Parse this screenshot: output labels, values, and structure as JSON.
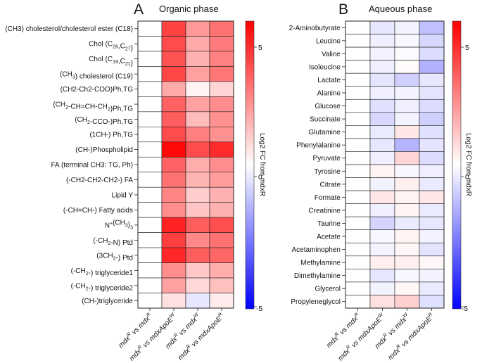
{
  "chart_data": [
    {
      "type": "heatmap",
      "panel_label": "A",
      "title": "Organic phase",
      "colorbar_label": "Log2 FC from mdxR",
      "colorbar_ticks": [
        "5",
        "0",
        "-5"
      ],
      "vlim": [
        -6.5,
        6.5
      ],
      "columns": [
        "mdxR vs mdxR",
        "mdxR vs mdxApoEW",
        "mdxR vs mdxW",
        "mdxR vs mdxApoER"
      ],
      "rows": [
        {
          "label": "(CH3) cholesterol/cholesterol ester (C18)",
          "values": [
            0,
            4.8,
            2.6,
            3.6
          ]
        },
        {
          "label": "Chol (C26,C27)",
          "values": [
            0,
            4.6,
            2.2,
            3.4
          ]
        },
        {
          "label": "Chol (C19,C21)",
          "values": [
            0,
            4.4,
            2.0,
            3.2
          ]
        },
        {
          "label": "(CH3) cholesterol (C19)",
          "values": [
            0,
            4.7,
            2.4,
            3.5
          ]
        },
        {
          "label": "(CH2-Ch2-COO)Ph,TG",
          "values": [
            0,
            2.2,
            0.3,
            1.1
          ]
        },
        {
          "label": "(CH2-CH=CH-CH2)Ph,TG",
          "values": [
            0,
            4.0,
            2.4,
            2.9
          ]
        },
        {
          "label": "(CH2-CCO-)Ph,TG",
          "values": [
            0,
            4.1,
            1.7,
            2.8
          ]
        },
        {
          "label": "(1CH-) Ph,TG",
          "values": [
            0,
            4.6,
            3.3,
            2.8
          ]
        },
        {
          "label": "(CH-)Phospholipid",
          "values": [
            0,
            6.3,
            4.6,
            5.4
          ]
        },
        {
          "label": "FA (terminal CH3: TG, Ph)",
          "values": [
            0,
            4.0,
            2.1,
            2.9
          ]
        },
        {
          "label": "(-CH2-CH2-CH2-) FA",
          "values": [
            0,
            3.6,
            1.9,
            2.5
          ]
        },
        {
          "label": "Lipid Y",
          "values": [
            0,
            3.1,
            1.3,
            2.0
          ]
        },
        {
          "label": "(-CH=CH-) Fatty acids",
          "values": [
            0,
            2.9,
            1.5,
            2.0
          ]
        },
        {
          "label": "N+(CH3)3",
          "values": [
            0,
            5.6,
            4.1,
            4.5
          ]
        },
        {
          "label": "(-CH2-N) Ptd",
          "values": [
            0,
            4.9,
            3.0,
            3.6
          ]
        },
        {
          "label": "(3CH2-) Ptd",
          "values": [
            0,
            5.5,
            4.1,
            3.9
          ]
        },
        {
          "label": "(-CH2-) triglyceride1",
          "values": [
            0,
            2.9,
            1.4,
            2.1
          ]
        },
        {
          "label": "(-CH2-) triglyceride2",
          "values": [
            0,
            2.4,
            1.0,
            1.6
          ]
        },
        {
          "label": "(CH-)triglyceride",
          "values": [
            0,
            0.8,
            -0.6,
            0.5
          ]
        }
      ]
    },
    {
      "type": "heatmap",
      "panel_label": "B",
      "title": "Aqueous phase",
      "colorbar_label": "Log2 FC from mdxR",
      "colorbar_ticks": [
        "5",
        "0",
        "-5"
      ],
      "vlim": [
        -6.5,
        6.5
      ],
      "columns": [
        "mdxR vs mdxR",
        "mdxR vs mdxApoEW",
        "mdxR vs mdxW",
        "mdxR vs mdxApoER"
      ],
      "rows": [
        {
          "label": "2-Aminobutyrate",
          "values": [
            0,
            -0.6,
            -0.3,
            -1.6
          ]
        },
        {
          "label": "Leucine",
          "values": [
            0,
            -0.4,
            -0.2,
            -1.0
          ]
        },
        {
          "label": "Valine",
          "values": [
            0,
            -0.3,
            -0.1,
            -0.9
          ]
        },
        {
          "label": "Isoleucine",
          "values": [
            0,
            -0.4,
            0.1,
            -2.0
          ]
        },
        {
          "label": "Lactate",
          "values": [
            0,
            -0.7,
            -1.2,
            -0.6
          ]
        },
        {
          "label": "Alanine",
          "values": [
            0,
            -0.4,
            -0.3,
            -0.7
          ]
        },
        {
          "label": "Glucose",
          "values": [
            0,
            -0.8,
            -0.4,
            -0.9
          ]
        },
        {
          "label": "Succinate",
          "values": [
            0,
            -1.0,
            -0.3,
            -1.2
          ]
        },
        {
          "label": "Glutamine",
          "values": [
            0,
            -0.5,
            0.6,
            -0.8
          ]
        },
        {
          "label": "Phenylalanine",
          "values": [
            0,
            -0.6,
            -1.9,
            -0.7
          ]
        },
        {
          "label": "Pyruvate",
          "values": [
            0,
            -0.4,
            1.1,
            -0.9
          ]
        },
        {
          "label": "Tyrosine",
          "values": [
            0,
            0.3,
            -0.2,
            -0.4
          ]
        },
        {
          "label": "Citrate",
          "values": [
            0,
            -0.3,
            0.4,
            -0.5
          ]
        },
        {
          "label": "Formate",
          "values": [
            0,
            0.6,
            0.3,
            0.6
          ]
        },
        {
          "label": "Creatinine",
          "values": [
            0,
            -0.4,
            0.3,
            -0.5
          ]
        },
        {
          "label": "Taurine",
          "values": [
            0,
            -1.1,
            -0.5,
            -0.6
          ]
        },
        {
          "label": "Acetate",
          "values": [
            0,
            -0.2,
            0.3,
            -0.3
          ]
        },
        {
          "label": "Acetaminophen",
          "values": [
            0,
            -0.3,
            0.2,
            -0.7
          ]
        },
        {
          "label": "Methylamine",
          "values": [
            0,
            0.4,
            0.4,
            0.2
          ]
        },
        {
          "label": "Dimethylamine",
          "values": [
            0,
            -0.6,
            -0.2,
            -0.3
          ]
        },
        {
          "label": "Glycerol",
          "values": [
            0,
            -0.3,
            0.2,
            -0.5
          ]
        },
        {
          "label": "Propyleneglycol",
          "values": [
            0,
            0.8,
            1.2,
            -0.8
          ]
        }
      ]
    }
  ]
}
